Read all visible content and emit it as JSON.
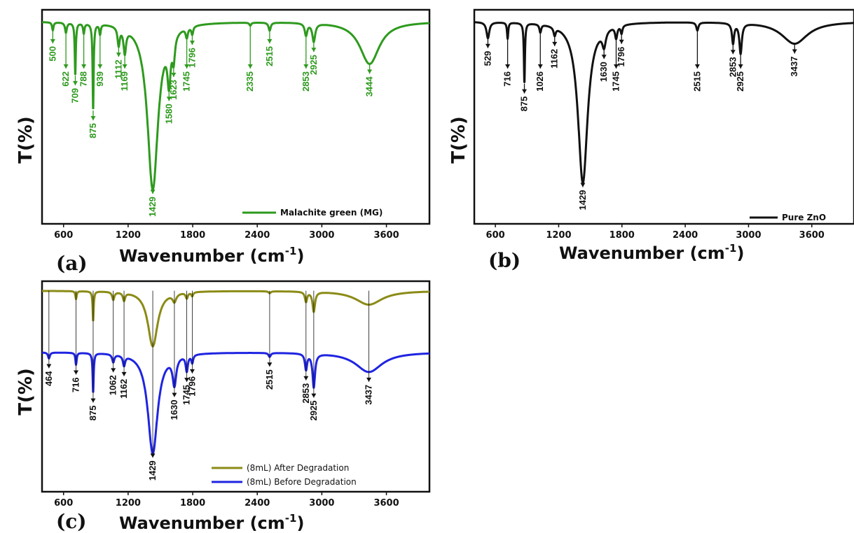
{
  "chart_data": [
    {
      "panel": "(a)",
      "type": "line",
      "xlabel": "Wavenumber (cm",
      "xlabel_sup": "-1",
      "xlabel_close": ")",
      "ylabel": "T(%)",
      "xlim": [
        400,
        4000
      ],
      "x_ticks": [
        600,
        1200,
        1800,
        2400,
        3000,
        3600
      ],
      "color": "#2e9a1e",
      "legend": "Malachite green (MG)",
      "legend_position": "bottom-right",
      "series": [
        {
          "name": "Malachite green (MG)",
          "baseline": 0.03,
          "peaks": [
            {
              "wn": 500,
              "depth": 0.04,
              "width": 8
            },
            {
              "wn": 622,
              "depth": 0.05,
              "width": 10
            },
            {
              "wn": 709,
              "depth": 0.26,
              "width": 6
            },
            {
              "wn": 788,
              "depth": 0.05,
              "width": 8
            },
            {
              "wn": 875,
              "depth": 0.43,
              "width": 6
            },
            {
              "wn": 939,
              "depth": 0.05,
              "width": 8
            },
            {
              "wn": 1112,
              "depth": 0.09,
              "width": 12
            },
            {
              "wn": 1169,
              "depth": 0.12,
              "width": 14
            },
            {
              "wn": 1429,
              "depth": 0.83,
              "width": 60
            },
            {
              "wn": 1580,
              "depth": 0.22,
              "width": 18
            },
            {
              "wn": 1623,
              "depth": 0.12,
              "width": 14
            },
            {
              "wn": 1745,
              "depth": 0.05,
              "width": 12
            },
            {
              "wn": 1796,
              "depth": 0.04,
              "width": 10
            },
            {
              "wn": 2335,
              "depth": 0.015,
              "width": 10
            },
            {
              "wn": 2515,
              "depth": 0.04,
              "width": 12
            },
            {
              "wn": 2853,
              "depth": 0.06,
              "width": 14
            },
            {
              "wn": 2925,
              "depth": 0.09,
              "width": 16
            },
            {
              "wn": 3444,
              "depth": 0.21,
              "width": 110
            }
          ]
        }
      ],
      "annotations": [
        "500",
        "622",
        "709",
        "788",
        "875",
        "939",
        "1112",
        "1169",
        "1429",
        "1580",
        "1623",
        "1745",
        "1796",
        "2335",
        "2515",
        "2853",
        "2925",
        "3444"
      ]
    },
    {
      "panel": "(b)",
      "type": "line",
      "xlabel": "Wavenumber (cm",
      "xlabel_sup": "-1",
      "xlabel_close": ")",
      "ylabel": "T(%)",
      "xlim": [
        400,
        4000
      ],
      "x_ticks": [
        600,
        1200,
        1800,
        2400,
        3000,
        3600
      ],
      "color": "#111111",
      "legend": "Pure ZnO",
      "legend_position": "bottom-right",
      "series": [
        {
          "name": "Pure ZnO",
          "baseline": 0.03,
          "peaks": [
            {
              "wn": 529,
              "depth": 0.08,
              "width": 16
            },
            {
              "wn": 716,
              "depth": 0.08,
              "width": 7
            },
            {
              "wn": 875,
              "depth": 0.3,
              "width": 6
            },
            {
              "wn": 1026,
              "depth": 0.04,
              "width": 10
            },
            {
              "wn": 1162,
              "depth": 0.04,
              "width": 12
            },
            {
              "wn": 1429,
              "depth": 0.8,
              "width": 55
            },
            {
              "wn": 1630,
              "depth": 0.08,
              "width": 20
            },
            {
              "wn": 1745,
              "depth": 0.06,
              "width": 12
            },
            {
              "wn": 1796,
              "depth": 0.04,
              "width": 10
            },
            {
              "wn": 2515,
              "depth": 0.04,
              "width": 12
            },
            {
              "wn": 2853,
              "depth": 0.1,
              "width": 12
            },
            {
              "wn": 2925,
              "depth": 0.15,
              "width": 14
            },
            {
              "wn": 3437,
              "depth": 0.11,
              "width": 150
            }
          ]
        }
      ],
      "annotations": [
        "529",
        "716",
        "875",
        "1026",
        "1162",
        "1429",
        "1630",
        "1745",
        "1796",
        "2515",
        "2853",
        "2925",
        "3437"
      ]
    },
    {
      "panel": "(c)",
      "type": "line",
      "xlabel": "Wavenumber (cm",
      "xlabel_sup": "-1",
      "xlabel_close": ")",
      "ylabel": "T(%)",
      "xlim": [
        400,
        4000
      ],
      "x_ticks": [
        600,
        1200,
        1800,
        2400,
        3000,
        3600
      ],
      "legend_position": "bottom-right",
      "series": [
        {
          "name": "(8mL) After Degradation",
          "color": "#8b8b16",
          "baseline": 0.02,
          "peaks": [
            {
              "wn": 716,
              "depth": 0.04,
              "width": 7
            },
            {
              "wn": 875,
              "depth": 0.15,
              "width": 6
            },
            {
              "wn": 1062,
              "depth": 0.04,
              "width": 12
            },
            {
              "wn": 1162,
              "depth": 0.04,
              "width": 12
            },
            {
              "wn": 1429,
              "depth": 0.28,
              "width": 55
            },
            {
              "wn": 1630,
              "depth": 0.04,
              "width": 20
            },
            {
              "wn": 1745,
              "depth": 0.03,
              "width": 12
            },
            {
              "wn": 1796,
              "depth": 0.02,
              "width": 10
            },
            {
              "wn": 2515,
              "depth": 0.01,
              "width": 12
            },
            {
              "wn": 2853,
              "depth": 0.05,
              "width": 12
            },
            {
              "wn": 2925,
              "depth": 0.1,
              "width": 14
            },
            {
              "wn": 3437,
              "depth": 0.07,
              "width": 150
            }
          ]
        },
        {
          "name": "(8mL) Before Degradation",
          "color": "#1f24e0",
          "baseline": 0.33,
          "peaks": [
            {
              "wn": 464,
              "depth": 0.03,
              "width": 10
            },
            {
              "wn": 716,
              "depth": 0.06,
              "width": 7
            },
            {
              "wn": 875,
              "depth": 0.2,
              "width": 6
            },
            {
              "wn": 1062,
              "depth": 0.04,
              "width": 12
            },
            {
              "wn": 1162,
              "depth": 0.05,
              "width": 12
            },
            {
              "wn": 1429,
              "depth": 0.51,
              "width": 55
            },
            {
              "wn": 1630,
              "depth": 0.14,
              "width": 20
            },
            {
              "wn": 1745,
              "depth": 0.08,
              "width": 12
            },
            {
              "wn": 1796,
              "depth": 0.04,
              "width": 10
            },
            {
              "wn": 2515,
              "depth": 0.02,
              "width": 12
            },
            {
              "wn": 2853,
              "depth": 0.08,
              "width": 12
            },
            {
              "wn": 2925,
              "depth": 0.17,
              "width": 14
            },
            {
              "wn": 3437,
              "depth": 0.1,
              "width": 150
            }
          ]
        }
      ],
      "annotations": [
        "464",
        "716",
        "875",
        "1062",
        "1162",
        "1429",
        "1630",
        "1745",
        "1796",
        "2515",
        "2853",
        "2925",
        "3437"
      ]
    }
  ]
}
